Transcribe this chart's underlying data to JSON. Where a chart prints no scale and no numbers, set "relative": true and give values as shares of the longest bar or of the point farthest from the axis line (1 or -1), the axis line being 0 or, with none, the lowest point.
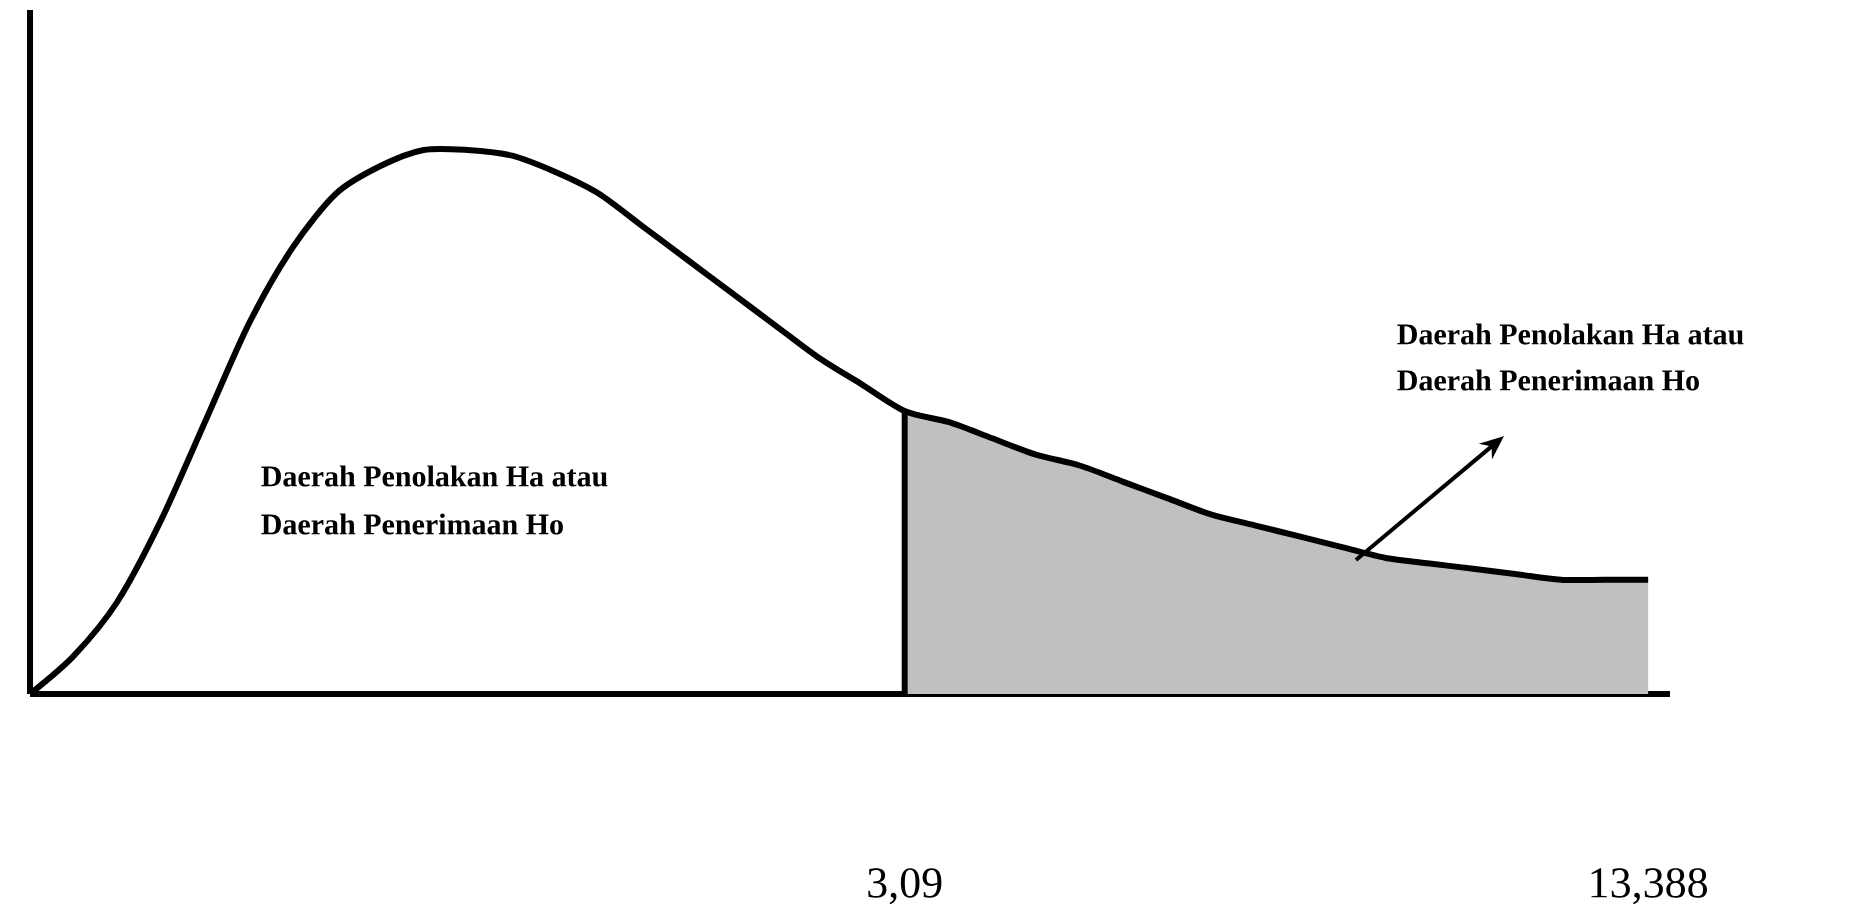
{
  "chart_data": {
    "type": "line",
    "relative": true,
    "categories": [
      null,
      null,
      null,
      null,
      null,
      null,
      null,
      null,
      null,
      null,
      null,
      null,
      null,
      null,
      null,
      null,
      null,
      null,
      null,
      null,
      "3,09",
      null,
      null,
      null,
      null,
      null,
      null,
      null,
      null,
      null,
      null,
      null,
      null,
      null,
      null,
      null,
      null,
      "13,388"
    ],
    "series": [
      {
        "color": "#000000",
        "values": [
          0,
          0.07,
          0.17,
          0.32,
          0.5,
          0.68,
          0.82,
          0.92,
          0.97,
          1.0,
          1.0,
          0.99,
          0.96,
          0.92,
          0.86,
          0.8,
          0.74,
          0.68,
          0.62,
          0.57,
          0.52,
          0.5,
          0.47,
          0.44,
          0.42,
          0.39,
          0.36,
          0.33,
          0.31,
          0.29,
          0.27,
          0.25,
          0.24,
          0.23,
          0.22,
          0.21,
          0.21,
          0.21
        ]
      },
      {
        "type": "area",
        "color": "#c0c0c0",
        "values": [
          null,
          null,
          null,
          null,
          null,
          null,
          null,
          null,
          null,
          null,
          null,
          null,
          null,
          null,
          null,
          null,
          null,
          null,
          null,
          null,
          0.52,
          0.5,
          0.47,
          0.44,
          0.42,
          0.39,
          0.36,
          0.33,
          0.31,
          0.29,
          0.27,
          0.25,
          0.24,
          0.23,
          0.22,
          0.21,
          0.21,
          0.21
        ]
      }
    ],
    "annotations": [
      "Daerah Penolakan Ha atau",
      "Daerah Penerimaan Ho",
      "Daerah Penolakan Ha atau",
      "Daerah Penerimaan Ho"
    ]
  }
}
